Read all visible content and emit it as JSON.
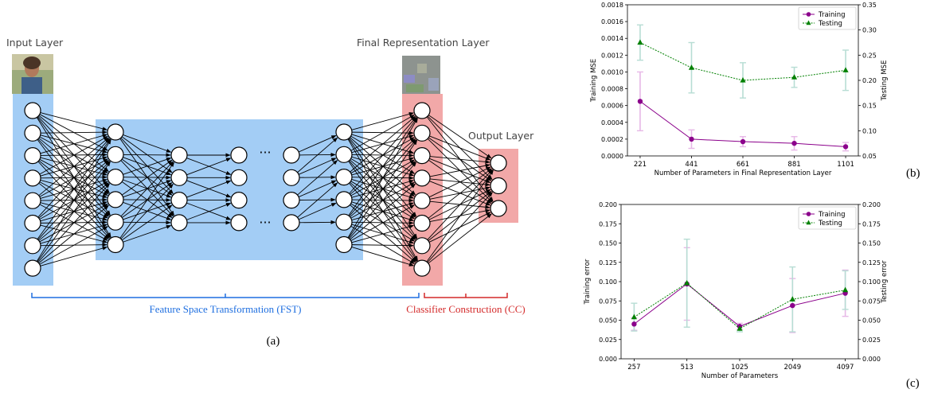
{
  "network": {
    "input_layer_label": "Input Layer",
    "final_layer_label": "Final Representation Layer",
    "output_layer_label": "Output Layer",
    "ellipsis": "···",
    "fst_label": "Feature Space Transformation (FST)",
    "cc_label": "Classifier Construction (CC)",
    "panel_label": "(a)",
    "colors": {
      "fst_region": "#a3cdf5",
      "cc_region": "#f2a8a8",
      "fst_text": "#1f6fe0",
      "cc_text": "#d42a2a"
    }
  },
  "chart_b_label": "(b)",
  "chart_c_label": "(c)",
  "chart_data": [
    {
      "type": "line",
      "categories": [
        "221",
        "441",
        "661",
        "881",
        "1101"
      ],
      "xlabel": "Number of Parameters in Final Representation Layer",
      "ylabel": "Training MSE",
      "y2label": "Testing MSE",
      "ylim": [
        0,
        0.0018
      ],
      "y2lim": [
        0.05,
        0.35
      ],
      "yticks": [
        "0.0000",
        "0.0002",
        "0.0004",
        "0.0006",
        "0.0008",
        "0.0010",
        "0.0012",
        "0.0014",
        "0.0016",
        "0.0018"
      ],
      "y2ticks": [
        "0.05",
        "0.10",
        "0.15",
        "0.20",
        "0.25",
        "0.30",
        "0.35"
      ],
      "legend_position": "top-right",
      "series": [
        {
          "name": "Training",
          "axis": "left",
          "color": "#8b008b",
          "values": [
            0.00065,
            0.0002,
            0.00017,
            0.00015,
            0.00011
          ],
          "err": [
            0.00035,
            0.00011,
            6e-05,
            8e-05,
            5e-05
          ]
        },
        {
          "name": "Testing",
          "axis": "right",
          "color": "#008000",
          "values": [
            0.275,
            0.225,
            0.2,
            0.206,
            0.22
          ],
          "err": [
            0.035,
            0.05,
            0.035,
            0.02,
            0.04
          ]
        }
      ]
    },
    {
      "type": "line",
      "categories": [
        "257",
        "513",
        "1025",
        "2049",
        "4097"
      ],
      "xlabel": "Number of Parameters",
      "ylabel": "Training error",
      "y2label": "Testing error",
      "ylim": [
        0,
        0.2
      ],
      "y2lim": [
        0,
        0.2
      ],
      "yticks": [
        "0.000",
        "0.025",
        "0.050",
        "0.075",
        "0.100",
        "0.125",
        "0.150",
        "0.175",
        "0.200"
      ],
      "y2ticks": [
        "0.000",
        "0.025",
        "0.050",
        "0.075",
        "0.100",
        "0.125",
        "0.150",
        "0.175",
        "0.200"
      ],
      "legend_position": "top-right",
      "series": [
        {
          "name": "Training",
          "axis": "left",
          "color": "#8b008b",
          "values": [
            0.045,
            0.097,
            0.042,
            0.069,
            0.085
          ],
          "err": [
            0.008,
            0.047,
            0.004,
            0.035,
            0.03
          ]
        },
        {
          "name": "Testing",
          "axis": "right",
          "color": "#008000",
          "values": [
            0.054,
            0.098,
            0.039,
            0.077,
            0.089
          ],
          "err": [
            0.018,
            0.057,
            0.004,
            0.042,
            0.025
          ]
        }
      ]
    }
  ]
}
